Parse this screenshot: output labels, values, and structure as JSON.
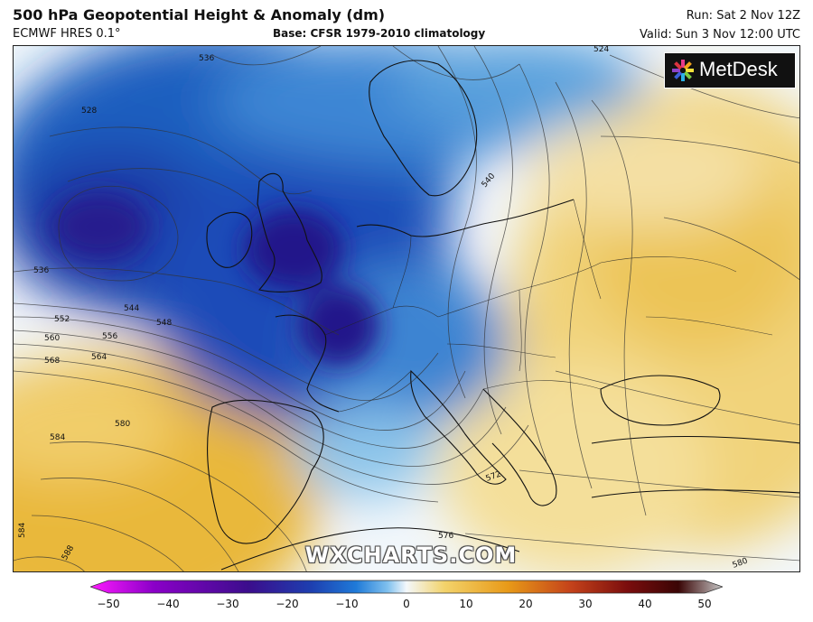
{
  "header": {
    "title": "500 hPa Geopotential Height & Anomaly (dm)",
    "model": "ECMWF HRES 0.1°",
    "base": "Base: CFSR 1979-2010 climatology",
    "run": "Run: Sat 2 Nov 12Z",
    "valid": "Valid: Sun 3 Nov 12:00 UTC"
  },
  "logo": {
    "text": "MetDesk"
  },
  "watermark": "WXCHARTS.COM",
  "contour_labels": [
    {
      "id": "c536a",
      "text": "536"
    },
    {
      "id": "c528",
      "text": "528"
    },
    {
      "id": "c536b",
      "text": "536"
    },
    {
      "id": "c544",
      "text": "544"
    },
    {
      "id": "c548",
      "text": "548"
    },
    {
      "id": "c552",
      "text": "552"
    },
    {
      "id": "c556",
      "text": "556"
    },
    {
      "id": "c560",
      "text": "560"
    },
    {
      "id": "c564",
      "text": "564"
    },
    {
      "id": "c568",
      "text": "568"
    },
    {
      "id": "c580a",
      "text": "580"
    },
    {
      "id": "c584a",
      "text": "584"
    },
    {
      "id": "c584b",
      "text": "584"
    },
    {
      "id": "c588",
      "text": "588"
    },
    {
      "id": "c540",
      "text": "540"
    },
    {
      "id": "c572",
      "text": "572"
    },
    {
      "id": "c576",
      "text": "576"
    },
    {
      "id": "c580b",
      "text": "580"
    },
    {
      "id": "c524",
      "text": "524"
    }
  ],
  "colorbar": {
    "ticks": [
      "−50",
      "−40",
      "−30",
      "−20",
      "−10",
      "0",
      "10",
      "20",
      "30",
      "40",
      "50"
    ],
    "colors": [
      "#ff1aff",
      "#8b00c8",
      "#3b0d8c",
      "#1d3fb0",
      "#1f7ad8",
      "#7fc0ee",
      "#f4f8fb",
      "#f3d36b",
      "#e89a18",
      "#c4421a",
      "#7a0d0d",
      "#3a0505",
      "#c8c8c8"
    ]
  }
}
